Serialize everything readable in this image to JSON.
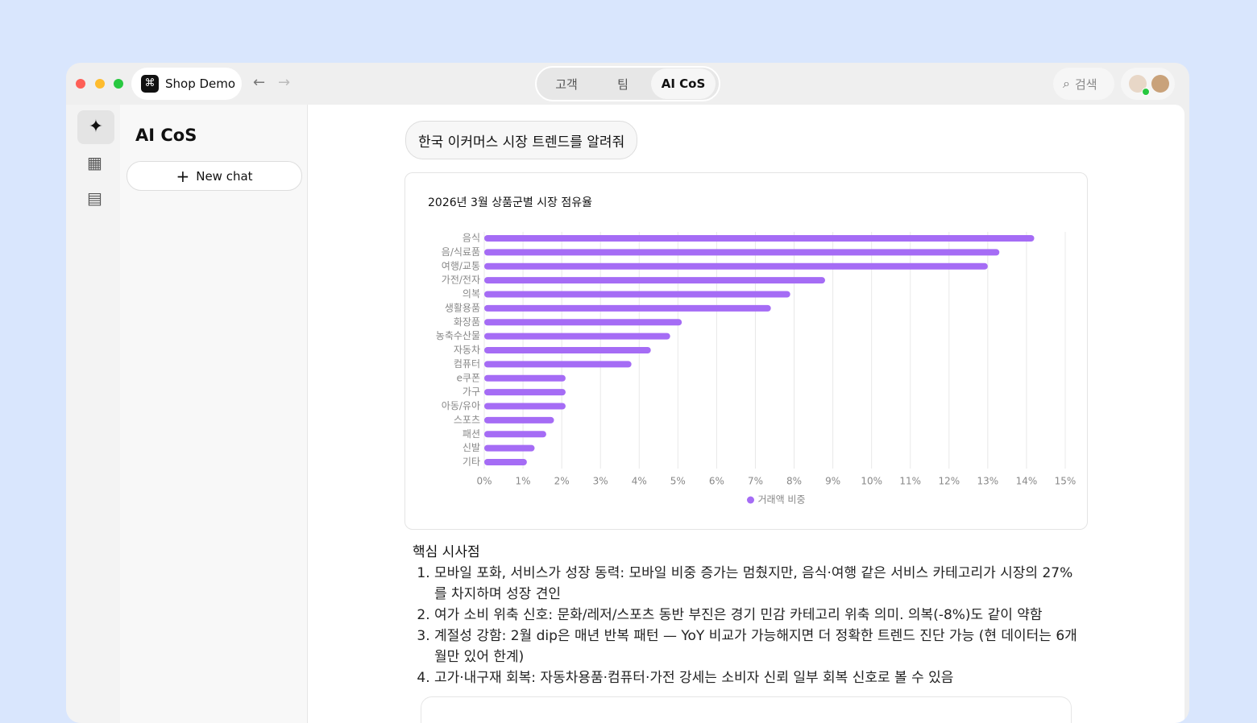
{
  "window": {
    "app_name": "Shop Demo",
    "tabs": [
      "고객",
      "팀",
      "AI CoS"
    ],
    "active_tab": 2,
    "search": "검색"
  },
  "sidebar": {
    "title": "AI CoS",
    "new_chat": "New chat"
  },
  "chat": {
    "user_message": "한국 이커머스 시장 트렌드를 알려줘"
  },
  "chart_data": {
    "type": "bar",
    "orientation": "horizontal",
    "title": "2026년 3월 상품군별 시장 점유율",
    "categories": [
      "음식",
      "음/식료품",
      "여행/교통",
      "가전/전자",
      "의복",
      "생활용품",
      "화장품",
      "농축수산물",
      "자동차",
      "컴퓨터",
      "e쿠폰",
      "가구",
      "아동/유아",
      "스포츠",
      "패션",
      "신발",
      "기타"
    ],
    "series": [
      {
        "name": "거래액 비중",
        "color": "#a56cf5",
        "values": [
          14.2,
          13.3,
          13.0,
          8.8,
          7.9,
          7.4,
          5.1,
          4.8,
          4.3,
          3.8,
          2.1,
          2.1,
          2.1,
          1.8,
          1.6,
          1.3,
          1.1
        ]
      }
    ],
    "xlim": [
      0,
      15
    ],
    "xticks": [
      {
        "value": 0,
        "label": "0%"
      },
      {
        "value": 1,
        "label": "1%"
      },
      {
        "value": 2,
        "label": "2%"
      },
      {
        "value": 3,
        "label": "3%"
      },
      {
        "value": 4,
        "label": "4%"
      },
      {
        "value": 5,
        "label": "5%"
      },
      {
        "value": 6,
        "label": "6%"
      },
      {
        "value": 7,
        "label": "7%"
      },
      {
        "value": 8,
        "label": "8%"
      },
      {
        "value": 9,
        "label": "9%"
      },
      {
        "value": 10,
        "label": "10%"
      },
      {
        "value": 11,
        "label": "11%"
      },
      {
        "value": 12,
        "label": "12%"
      },
      {
        "value": 13,
        "label": "13%"
      },
      {
        "value": 14,
        "label": "14%"
      },
      {
        "value": 15,
        "label": "15%"
      }
    ],
    "grid": true,
    "legend": "bottom"
  },
  "insights": {
    "heading": "핵심 시사점",
    "items": [
      "모바일 포화, 서비스가 성장 동력: 모바일 비중 증가는 멈췄지만, 음식·여행 같은 서비스 카테고리가 시장의 27%를 차지하며 성장 견인",
      "여가 소비 위축 신호: 문화/레저/스포츠 동반 부진은 경기 민감 카테고리 위축 의미. 의복(-8%)도 같이 약함",
      "계절성 강함: 2월 dip은 매년 반복 패턴 — YoY 비교가 가능해지면 더 정확한 트렌드 진단 가능 (현 데이터는 6개월만 있어 한계)",
      "고가·내구재 회복: 자동차용품·컴퓨터·가전 강세는 소비자 신뢰 일부 회복 신호로 볼 수 있음"
    ]
  }
}
